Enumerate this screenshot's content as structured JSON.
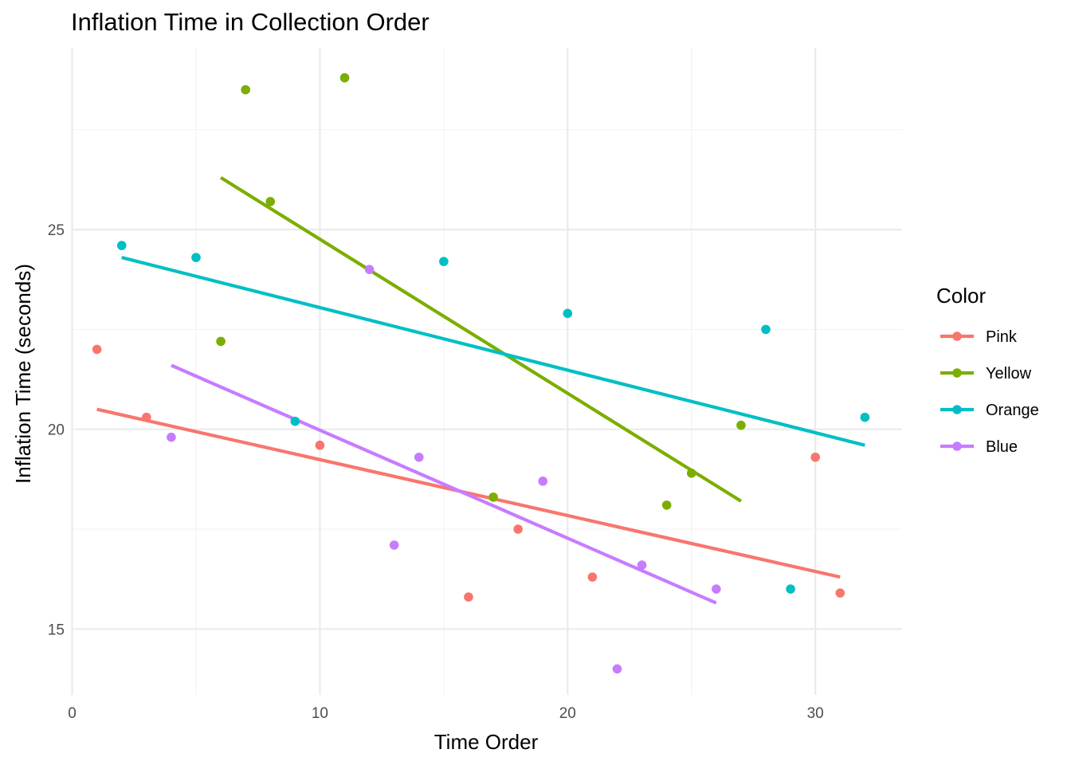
{
  "chart_data": {
    "type": "scatter",
    "title": "Inflation Time in Collection Order",
    "xlabel": "Time Order",
    "ylabel": "Inflation Time (seconds)",
    "xlim": [
      -0.05,
      33.5
    ],
    "ylim": [
      13.35,
      29.55
    ],
    "x_ticks": [
      0,
      10,
      20,
      30
    ],
    "y_ticks": [
      15,
      20,
      25
    ],
    "x_minor": [
      5,
      15,
      25
    ],
    "y_minor": [
      17.5,
      22.5,
      27.5
    ],
    "grid": true,
    "legend": {
      "title": "Color",
      "position": "right"
    },
    "series": [
      {
        "name": "Pink",
        "color": "#F8766D",
        "points": [
          [
            1,
            22.0
          ],
          [
            3,
            20.3
          ],
          [
            10,
            19.6
          ],
          [
            16,
            15.8
          ],
          [
            18,
            17.5
          ],
          [
            21,
            16.3
          ],
          [
            30,
            19.3
          ],
          [
            31,
            15.9
          ]
        ],
        "trend": [
          [
            1,
            20.5
          ],
          [
            31,
            16.3
          ]
        ]
      },
      {
        "name": "Yellow",
        "color": "#7CAE00",
        "points": [
          [
            6,
            22.2
          ],
          [
            7,
            28.5
          ],
          [
            8,
            25.7
          ],
          [
            11,
            28.8
          ],
          [
            17,
            18.3
          ],
          [
            24,
            18.1
          ],
          [
            25,
            18.9
          ],
          [
            27,
            20.1
          ]
        ],
        "trend": [
          [
            6,
            26.3
          ],
          [
            27,
            18.2
          ]
        ]
      },
      {
        "name": "Orange",
        "color": "#00BFC4",
        "points": [
          [
            2,
            24.6
          ],
          [
            5,
            24.3
          ],
          [
            9,
            20.2
          ],
          [
            15,
            24.2
          ],
          [
            20,
            22.9
          ],
          [
            28,
            22.5
          ],
          [
            29,
            16.0
          ],
          [
            32,
            20.3
          ]
        ],
        "trend": [
          [
            2,
            24.3
          ],
          [
            32,
            19.6
          ]
        ]
      },
      {
        "name": "Blue",
        "color": "#C77CFF",
        "points": [
          [
            4,
            19.8
          ],
          [
            12,
            24.0
          ],
          [
            13,
            17.1
          ],
          [
            14,
            19.3
          ],
          [
            19,
            18.7
          ],
          [
            22,
            14.0
          ],
          [
            23,
            16.6
          ],
          [
            26,
            16.0
          ]
        ],
        "trend": [
          [
            4,
            21.6
          ],
          [
            26,
            15.65
          ]
        ]
      }
    ]
  }
}
